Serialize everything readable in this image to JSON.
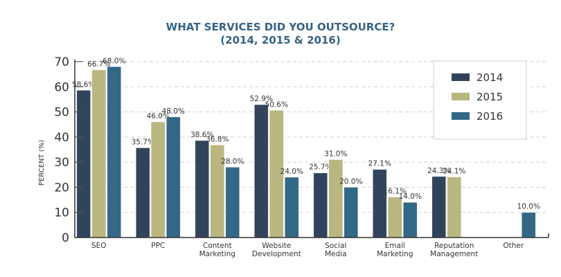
{
  "chart_data": {
    "type": "bar",
    "title": "WHAT SERVICES DID YOU OUTSOURCE?",
    "subtitle": "(2014, 2015 & 2016)",
    "xlabel": "",
    "ylabel": "PERCENT (%)",
    "ylim": [
      0,
      70
    ],
    "yticks": [
      0,
      10,
      20,
      30,
      40,
      50,
      60,
      70
    ],
    "grid": true,
    "legend_position": "top-right",
    "categories": [
      [
        "SEO"
      ],
      [
        "PPC"
      ],
      [
        "Content",
        "Marketing"
      ],
      [
        "Website",
        "Development"
      ],
      [
        "Social",
        "Media"
      ],
      [
        "Email",
        "Marketing"
      ],
      [
        "Reputation",
        "Management"
      ],
      [
        "Other"
      ]
    ],
    "series": [
      {
        "name": "2014",
        "color": "#31445c",
        "values": [
          58.6,
          35.7,
          38.6,
          52.9,
          25.7,
          27.1,
          24.3,
          null
        ]
      },
      {
        "name": "2015",
        "color": "#b9b77f",
        "values": [
          66.7,
          46.0,
          36.8,
          50.6,
          31.0,
          16.1,
          24.1,
          null
        ]
      },
      {
        "name": "2016",
        "color": "#336886",
        "values": [
          68.0,
          48.0,
          28.0,
          24.0,
          20.0,
          14.0,
          null,
          10.0
        ]
      }
    ],
    "value_suffix": "%"
  }
}
